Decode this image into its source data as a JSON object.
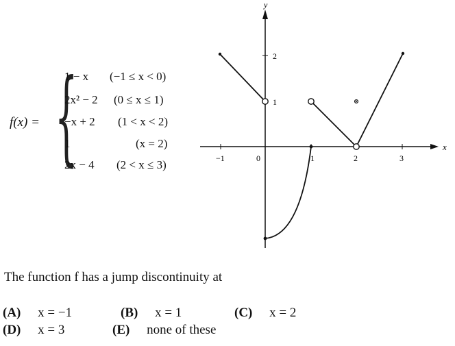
{
  "function": {
    "name": "f(x) =",
    "pieces": [
      {
        "expr": "1 − x",
        "cond": "(−1 ≤ x < 0)"
      },
      {
        "expr": "2x² − 2",
        "cond": "(0 ≤ x ≤ 1)"
      },
      {
        "expr": "−x + 2",
        "cond": "(1 < x < 2)"
      },
      {
        "expr": "1",
        "cond": "(x = 2)"
      },
      {
        "expr": "2x − 4",
        "cond": "(2 < x ≤ 3)"
      }
    ]
  },
  "graph": {
    "x_label": "x",
    "y_label": "y",
    "x_ticks": [
      "−1",
      "0",
      "1",
      "2",
      "3"
    ],
    "y_ticks": [
      "1",
      "2"
    ]
  },
  "question": {
    "stem": "The function f has a jump discontinuity at",
    "choices": [
      {
        "letter": "(A)",
        "text": "x = −1"
      },
      {
        "letter": "(B)",
        "text": "x = 1"
      },
      {
        "letter": "(C)",
        "text": "x = 2"
      },
      {
        "letter": "(D)",
        "text": "x = 3"
      },
      {
        "letter": "(E)",
        "text": "none of these"
      }
    ]
  }
}
